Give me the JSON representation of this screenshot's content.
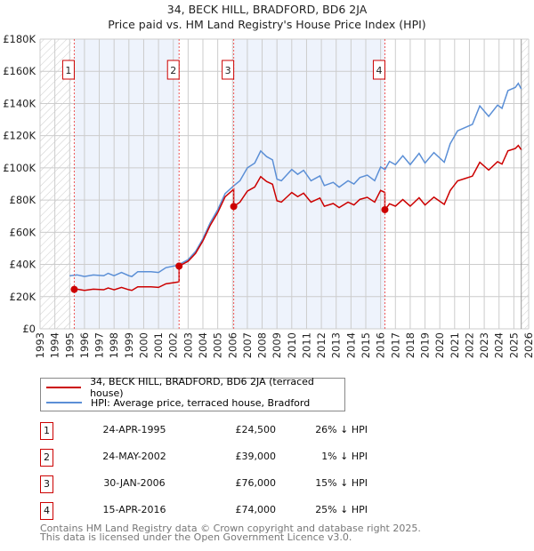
{
  "chart_data": {
    "type": "line",
    "title": "34, BECK HILL, BRADFORD, BD6 2JA",
    "subtitle": "Price paid vs. HM Land Registry's House Price Index (HPI)",
    "xlim": [
      1993,
      2026
    ],
    "ylim": [
      0,
      180000
    ],
    "yticks": [
      0,
      20000,
      40000,
      60000,
      80000,
      100000,
      120000,
      140000,
      160000,
      180000
    ],
    "ytick_labels": [
      "£0",
      "£20K",
      "£40K",
      "£60K",
      "£80K",
      "£100K",
      "£120K",
      "£140K",
      "£160K",
      "£180K"
    ],
    "xtick_labels": [
      "1993",
      "1994",
      "1995",
      "1996",
      "1997",
      "1998",
      "1999",
      "2000",
      "2001",
      "2002",
      "2003",
      "2004",
      "2005",
      "2006",
      "2007",
      "2008",
      "2009",
      "2010",
      "2011",
      "2012",
      "2013",
      "2014",
      "2015",
      "2016",
      "2017",
      "2018",
      "2019",
      "2020",
      "2021",
      "2022",
      "2023",
      "2024",
      "2025",
      "2026"
    ],
    "grid": true,
    "data_end": 2025.5,
    "colors": {
      "property": "#cc0000",
      "hpi": "#5b8fd6",
      "band": "#eef3fc"
    },
    "series": [
      {
        "name": "34, BECK HILL, BRADFORD, BD6 2JA (terraced house)",
        "derived_from_sales": true
      },
      {
        "name": "HPI: Average price, terraced house, Bradford",
        "points": [
          [
            1995.0,
            33000
          ],
          [
            1995.5,
            33500
          ],
          [
            1996,
            32500
          ],
          [
            1996.6,
            33500
          ],
          [
            1997.3,
            33000
          ],
          [
            1997.6,
            34500
          ],
          [
            1998,
            33000
          ],
          [
            1998.5,
            35000
          ],
          [
            1999,
            33000
          ],
          [
            1999.2,
            32500
          ],
          [
            1999.6,
            35500
          ],
          [
            2000.5,
            35500
          ],
          [
            2001,
            35000
          ],
          [
            2001.5,
            38000
          ],
          [
            2002.3,
            39500
          ],
          [
            2003,
            43000
          ],
          [
            2003.5,
            48000
          ],
          [
            2004,
            56000
          ],
          [
            2004.5,
            66000
          ],
          [
            2005,
            74000
          ],
          [
            2005.5,
            84000
          ],
          [
            2006.1,
            89000
          ],
          [
            2006.5,
            92000
          ],
          [
            2007,
            100000
          ],
          [
            2007.5,
            103000
          ],
          [
            2007.9,
            110500
          ],
          [
            2008.3,
            107000
          ],
          [
            2008.7,
            105000
          ],
          [
            2009,
            93000
          ],
          [
            2009.3,
            92000
          ],
          [
            2009.7,
            96000
          ],
          [
            2010,
            99000
          ],
          [
            2010.4,
            96000
          ],
          [
            2010.8,
            98500
          ],
          [
            2011.3,
            92000
          ],
          [
            2011.9,
            95000
          ],
          [
            2012.2,
            89000
          ],
          [
            2012.8,
            91000
          ],
          [
            2013.2,
            88000
          ],
          [
            2013.8,
            92000
          ],
          [
            2014.2,
            90000
          ],
          [
            2014.6,
            94000
          ],
          [
            2015.1,
            95500
          ],
          [
            2015.6,
            92000
          ],
          [
            2016,
            100500
          ],
          [
            2016.3,
            99000
          ],
          [
            2016.6,
            104000
          ],
          [
            2017,
            102000
          ],
          [
            2017.5,
            107500
          ],
          [
            2018,
            102000
          ],
          [
            2018.6,
            109000
          ],
          [
            2019,
            103000
          ],
          [
            2019.6,
            109500
          ],
          [
            2020.3,
            103500
          ],
          [
            2020.7,
            115000
          ],
          [
            2021.2,
            123000
          ],
          [
            2021.7,
            125000
          ],
          [
            2022.2,
            127000
          ],
          [
            2022.7,
            138500
          ],
          [
            2023.3,
            132000
          ],
          [
            2023.9,
            139000
          ],
          [
            2024.2,
            137000
          ],
          [
            2024.6,
            148000
          ],
          [
            2025.1,
            150000
          ],
          [
            2025.3,
            152500
          ],
          [
            2025.5,
            149000
          ]
        ]
      }
    ],
    "sales": [
      {
        "n": "1",
        "x": 1995.31,
        "price": 24500,
        "date": "24-APR-1995",
        "price_label": "£24,500",
        "hpi_label": "26% ↓ HPI"
      },
      {
        "n": "2",
        "x": 2002.39,
        "price": 39000,
        "date": "24-MAY-2002",
        "price_label": "£39,000",
        "hpi_label": "1% ↓ HPI"
      },
      {
        "n": "3",
        "x": 2006.08,
        "price": 76000,
        "date": "30-JAN-2006",
        "price_label": "£76,000",
        "hpi_label": "15% ↓ HPI"
      },
      {
        "n": "4",
        "x": 2016.29,
        "price": 74000,
        "date": "15-APR-2016",
        "price_label": "£74,000",
        "hpi_label": "25% ↓ HPI"
      }
    ]
  },
  "footer": {
    "line1": "Contains HM Land Registry data © Crown copyright and database right 2025.",
    "line2": "This data is licensed under the Open Government Licence v3.0."
  }
}
